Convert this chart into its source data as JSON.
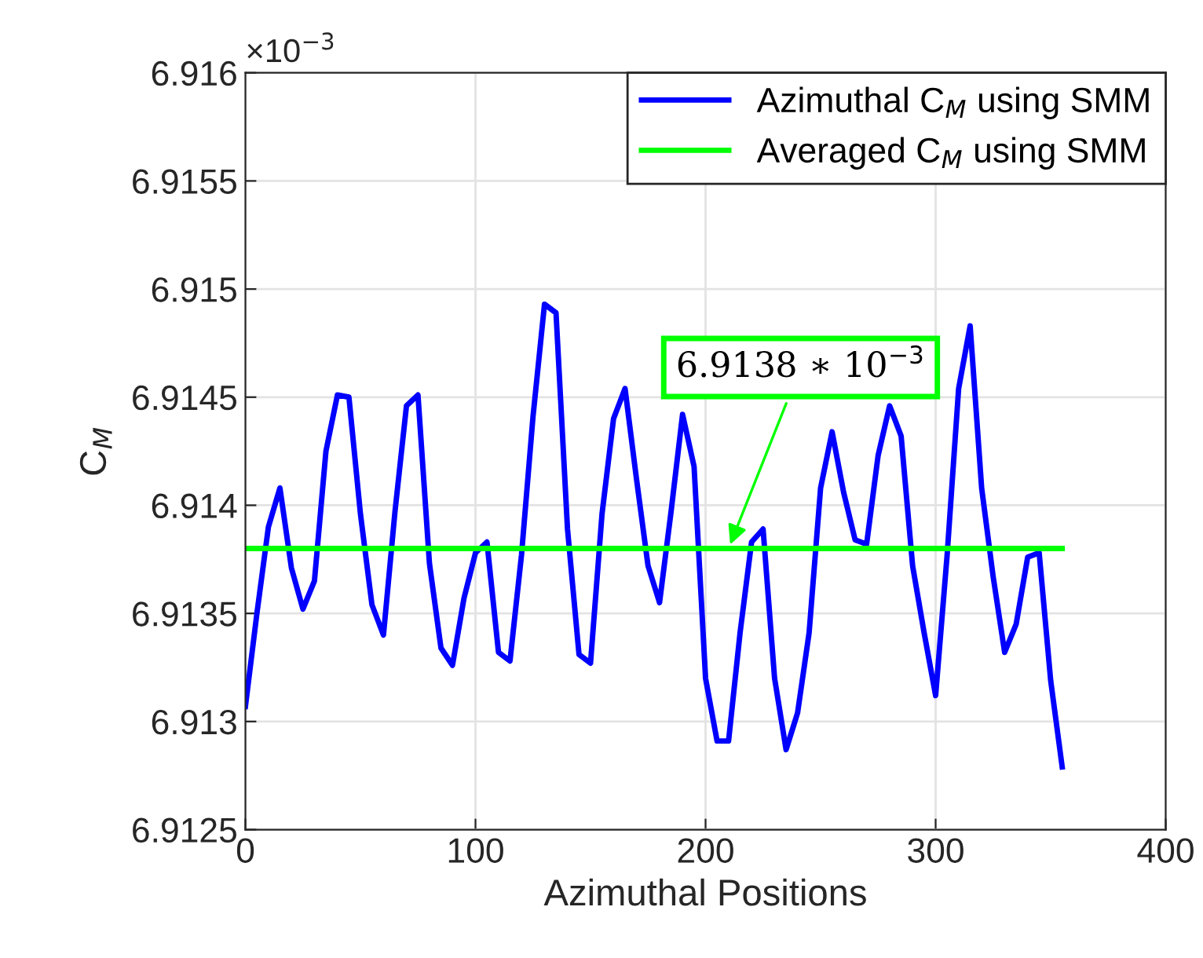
{
  "chart_data": {
    "type": "line",
    "xlabel": "Azimuthal Positions",
    "ylabel": "C$_{M}$",
    "x": [
      0,
      5,
      10,
      15,
      20,
      25,
      30,
      35,
      40,
      45,
      50,
      55,
      60,
      65,
      70,
      75,
      80,
      85,
      90,
      95,
      100,
      105,
      110,
      115,
      120,
      125,
      130,
      135,
      140,
      145,
      150,
      155,
      160,
      165,
      170,
      175,
      180,
      185,
      190,
      195,
      200,
      205,
      210,
      215,
      220,
      225,
      230,
      235,
      240,
      245,
      250,
      255,
      260,
      265,
      270,
      275,
      280,
      285,
      290,
      295,
      300,
      305,
      310,
      315,
      320,
      325,
      330,
      335,
      340,
      345,
      350,
      355
    ],
    "series": [
      {
        "name": "Azimuthal C$_{M}$ using SMM",
        "color": "#0000ff",
        "values": [
          6.91307,
          6.9135,
          6.9139,
          6.91408,
          6.91371,
          6.91352,
          6.91365,
          6.91425,
          6.91451,
          6.9145,
          6.91396,
          6.91354,
          6.9134,
          6.91397,
          6.91446,
          6.91451,
          6.91373,
          6.91334,
          6.91326,
          6.91357,
          6.91378,
          6.91383,
          6.91332,
          6.91328,
          6.91377,
          6.91441,
          6.91493,
          6.91489,
          6.91389,
          6.91331,
          6.91327,
          6.91396,
          6.9144,
          6.91454,
          6.91412,
          6.91372,
          6.91355,
          6.91397,
          6.91442,
          6.91418,
          6.9132,
          6.91291,
          6.91291,
          6.91341,
          6.91383,
          6.91389,
          6.9132,
          6.91287,
          6.91304,
          6.91341,
          6.91408,
          6.91434,
          6.91406,
          6.91384,
          6.91382,
          6.91423,
          6.91446,
          6.91432,
          6.91372,
          6.91341,
          6.91312,
          6.91377,
          6.91454,
          6.91483,
          6.91408,
          6.91367,
          6.91332,
          6.91345,
          6.91376,
          6.91378,
          6.91319,
          6.91279
        ]
      },
      {
        "name": "Averaged C$_{M}$ using SMM",
        "color": "#00ff00",
        "x": [
          0,
          355
        ],
        "values": [
          6.9138,
          6.9138
        ]
      }
    ],
    "annotations": [
      "×10$^{−3}$",
      {
        "text": "6.9138 ∗ 10$^{−3}$",
        "x": 210,
        "y": 6.9138
      }
    ],
    "xlim": [
      0,
      400
    ],
    "xticks": [
      0,
      100,
      200,
      300,
      400
    ],
    "ylim": [
      6.9125,
      6.916
    ],
    "yticks": [
      6.9125,
      6.913,
      6.9135,
      6.914,
      6.9145,
      6.915,
      6.9155,
      6.916
    ],
    "grid": true,
    "legend": "top right",
    "line_style": "solid",
    "marker": "none"
  }
}
